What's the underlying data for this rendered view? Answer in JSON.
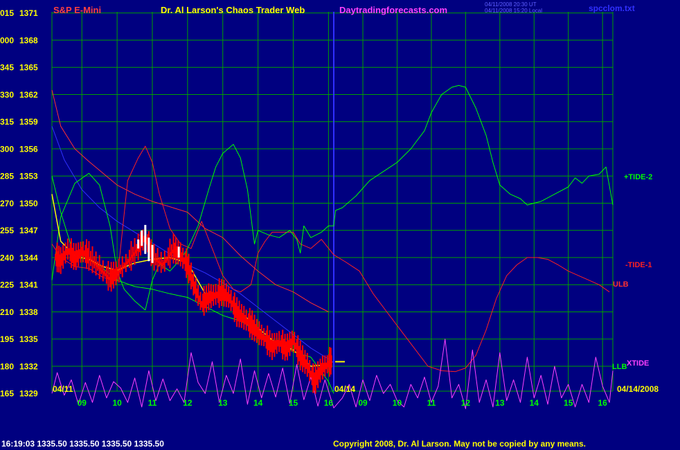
{
  "header": {
    "instrument": "S&P E-Mini",
    "title": "Dr. Al Larson's Chaos Trader Web",
    "site": "Daytradingforecasts.com",
    "stamp_line1": "04/11/2008 20:30 UT",
    "stamp_line2": "04/11/2008 15:20 Local",
    "file": "spcclom.txt"
  },
  "footer": {
    "quote": "16:19:03  1335.50  1335.50  1335.50  1335.50",
    "copyright": "Copyright 2008, Dr. Al Larson. May not be copied by any means."
  },
  "colors": {
    "background": "#000080",
    "grid": "#00A000",
    "divider": "#3030FF",
    "price": "#FF0000",
    "price_highlight": "#FFFFFF",
    "tide_2": "#00FF00",
    "tide_1": "#FF2020",
    "xtide": "#FF40FF",
    "ulb": "#FF3030",
    "llb": "#00FF00",
    "average": "#FFFF00"
  },
  "chart_data": {
    "type": "line",
    "y_left_labels": [
      "015",
      "000",
      "345",
      "330",
      "315",
      "300",
      "285",
      "270",
      "255",
      "240",
      "225",
      "210",
      "195",
      "180",
      "165"
    ],
    "y_right_labels": [
      "1371",
      "1368",
      "1365",
      "1362",
      "1359",
      "1356",
      "1353",
      "1350",
      "1347",
      "1344",
      "1341",
      "1338",
      "1335",
      "1332",
      "1329"
    ],
    "ylim": [
      1329,
      1371
    ],
    "x_tick_labels": [
      "09",
      "10",
      "11",
      "12",
      "13",
      "14",
      "15",
      "16",
      "09",
      "10",
      "11",
      "12",
      "13",
      "14",
      "15",
      "16"
    ],
    "date_labels": [
      "04/11",
      "04/14",
      "04/14/2008"
    ],
    "x_units": "hours (Apr 11 session 08:15-16:15, Apr 14 forecast 08:15-16:15)",
    "grid": true,
    "series": [
      {
        "key": "price",
        "x": [
          8.25,
          8.4,
          8.6,
          8.8,
          9.0,
          9.2,
          9.5,
          9.8,
          10.0,
          10.3,
          10.6,
          10.8,
          11.0,
          11.3,
          11.6,
          11.8,
          12.0,
          12.2,
          12.4,
          12.6,
          12.8,
          13.0,
          13.2,
          13.4,
          13.6,
          13.8,
          14.0,
          14.2,
          14.4,
          14.6,
          14.8,
          15.0,
          15.2,
          15.4,
          15.6,
          15.8,
          16.0,
          16.1
        ],
        "y": [
          1347.0,
          1346.5,
          1347.8,
          1346.8,
          1347.6,
          1347.0,
          1345.8,
          1344.6,
          1345.2,
          1346.5,
          1348.0,
          1349.2,
          1347.0,
          1346.2,
          1347.8,
          1347.2,
          1346.0,
          1343.6,
          1341.8,
          1342.5,
          1342.8,
          1343.0,
          1342.4,
          1340.8,
          1340.2,
          1339.5,
          1338.6,
          1338.0,
          1337.0,
          1337.6,
          1336.8,
          1337.8,
          1336.0,
          1335.0,
          1333.2,
          1334.6,
          1335.2,
          1335.5
        ]
      },
      {
        "key": "tide_2",
        "x": [
          8.15,
          8.4,
          8.8,
          9.2,
          9.5,
          9.8,
          10.0,
          10.2,
          10.5,
          10.8,
          11.0,
          11.2,
          11.5,
          11.8,
          12.0,
          12.3,
          12.6,
          12.8,
          13.0,
          13.3,
          13.5,
          13.7,
          13.9,
          14.0,
          14.3,
          14.6,
          14.9,
          15.1,
          15.2,
          15.3,
          15.5,
          15.8,
          16.0,
          16.15,
          16.2,
          16.4,
          16.8,
          17.2,
          17.6,
          18.0,
          18.4,
          18.8,
          19.0,
          19.3,
          19.6,
          19.8,
          20.0,
          20.3,
          20.6,
          20.8,
          21.0,
          21.3,
          21.6,
          21.8,
          22.2,
          22.6,
          23.0,
          23.2,
          23.4,
          23.6,
          23.9,
          24.1,
          24.3
        ],
        "y": [
          1344.5,
          1351.5,
          1355.2,
          1356.3,
          1355.0,
          1350.5,
          1345.5,
          1343.5,
          1342.2,
          1341.2,
          1344.5,
          1346.3,
          1345.5,
          1346.8,
          1348.0,
          1350.5,
          1354.5,
          1357.0,
          1358.5,
          1359.5,
          1358.0,
          1354.5,
          1348.5,
          1350.0,
          1349.5,
          1349.2,
          1350.0,
          1349.0,
          1347.5,
          1350.5,
          1349.2,
          1349.8,
          1350.5,
          1350.5,
          1352.2,
          1352.5,
          1353.8,
          1355.5,
          1356.5,
          1357.5,
          1359.0,
          1361.0,
          1363.0,
          1365.0,
          1365.8,
          1366.0,
          1365.8,
          1363.5,
          1360.5,
          1357.5,
          1355.0,
          1354.0,
          1353.5,
          1352.8,
          1353.2,
          1354.0,
          1354.8,
          1355.8,
          1355.2,
          1356.0,
          1356.2,
          1357.0,
          1352.8
        ]
      },
      {
        "key": "tide_1",
        "x": [
          8.15,
          8.4,
          8.8,
          9.2,
          9.6,
          10.0,
          10.3,
          10.6,
          10.8,
          11.0,
          11.2,
          11.5,
          11.8,
          12.1,
          12.4,
          12.7,
          13.0,
          13.3,
          13.5,
          13.8,
          14.0,
          14.2,
          14.4,
          14.8,
          15.0,
          15.2,
          15.5,
          15.8,
          16.15,
          16.5,
          16.9,
          17.3,
          17.7,
          18.1,
          18.5,
          18.9,
          19.3,
          19.7,
          20.0,
          20.3,
          20.6,
          20.9,
          21.2,
          21.5,
          21.8,
          22.1,
          22.4,
          22.7,
          23.0,
          23.3,
          23.6,
          23.9,
          24.2
        ],
        "y": [
          1348.5,
          1347.0,
          1346.0,
          1345.8,
          1344.8,
          1344.4,
          1355.5,
          1358.0,
          1359.3,
          1357.5,
          1354.0,
          1350.2,
          1348.5,
          1348.0,
          1351.0,
          1348.0,
          1345.0,
          1343.5,
          1343.2,
          1344.0,
          1347.5,
          1348.8,
          1349.8,
          1349.8,
          1349.8,
          1348.5,
          1348.0,
          1349.0,
          1347.3,
          1346.5,
          1345.5,
          1343.0,
          1341.0,
          1339.0,
          1337.0,
          1335.0,
          1334.5,
          1334.4,
          1334.8,
          1336.2,
          1339.0,
          1342.5,
          1345.0,
          1346.2,
          1347.0,
          1347.0,
          1346.8,
          1346.2,
          1345.5,
          1345.0,
          1344.5,
          1344.0,
          1343.2
        ]
      },
      {
        "key": "xtide",
        "x": [
          8.15,
          8.3,
          8.5,
          8.7,
          8.9,
          9.1,
          9.3,
          9.5,
          9.7,
          9.9,
          10.1,
          10.3,
          10.5,
          10.7,
          10.9,
          11.1,
          11.3,
          11.5,
          11.7,
          11.9,
          12.1,
          12.3,
          12.5,
          12.7,
          12.9,
          13.1,
          13.3,
          13.5,
          13.7,
          13.9,
          14.1,
          14.3,
          14.5,
          14.7,
          14.9,
          15.1,
          15.3,
          15.5,
          15.7,
          15.9,
          16.15,
          16.4,
          16.6,
          16.8,
          17.0,
          17.2,
          17.4,
          17.6,
          17.8,
          18.0,
          18.2,
          18.4,
          18.6,
          18.8,
          19.0,
          19.2,
          19.4,
          19.6,
          19.8,
          20.0,
          20.2,
          20.4,
          20.6,
          20.8,
          21.0,
          21.2,
          21.4,
          21.6,
          21.8,
          22.0,
          22.2,
          22.4,
          22.6,
          22.8,
          23.0,
          23.2,
          23.4,
          23.6,
          23.8,
          24.0,
          24.2,
          24.3
        ],
        "y": [
          1332.0,
          1334.3,
          1331.8,
          1333.5,
          1330.8,
          1333.2,
          1331.0,
          1334.0,
          1331.5,
          1333.3,
          1332.6,
          1331.0,
          1333.7,
          1330.5,
          1334.5,
          1331.2,
          1333.6,
          1331.2,
          1332.5,
          1331.0,
          1336.5,
          1333.2,
          1332.0,
          1335.5,
          1331.0,
          1334.0,
          1332.0,
          1335.8,
          1330.8,
          1334.5,
          1331.5,
          1334.2,
          1331.6,
          1334.8,
          1330.9,
          1335.2,
          1331.3,
          1333.8,
          1330.6,
          1333.5,
          1330.4,
          1331.5,
          1333.0,
          1330.5,
          1333.5,
          1331.2,
          1334.0,
          1332.0,
          1333.0,
          1331.2,
          1330.5,
          1333.0,
          1331.5,
          1333.8,
          1331.0,
          1332.8,
          1338.0,
          1331.5,
          1333.0,
          1330.3,
          1336.8,
          1331.0,
          1333.5,
          1330.5,
          1336.5,
          1331.2,
          1333.5,
          1331.0,
          1336.0,
          1331.5,
          1334.0,
          1330.8,
          1335.0,
          1331.5,
          1333.0,
          1330.5,
          1333.0,
          1331.0,
          1336.0,
          1332.8,
          1331.0,
          1334.5
        ]
      },
      {
        "key": "ulb",
        "x": [
          8.15,
          8.4,
          8.8,
          9.2,
          9.6,
          10.0,
          10.5,
          11.0,
          11.5,
          12.0,
          12.5,
          13.0,
          13.5,
          14.0,
          14.5,
          15.0,
          15.5,
          16.0
        ],
        "y": [
          1365.5,
          1361.5,
          1359.0,
          1357.6,
          1356.3,
          1355.0,
          1354.0,
          1353.2,
          1352.6,
          1352.0,
          1350.2,
          1349.2,
          1347.2,
          1345.5,
          1344.0,
          1343.2,
          1342.0,
          1341.0
        ]
      },
      {
        "key": "llb",
        "x": [
          8.15,
          8.4,
          8.8,
          9.2,
          9.6,
          10.0,
          10.5,
          11.0,
          11.5,
          12.0,
          12.5,
          13.0,
          13.5,
          14.0,
          14.5,
          15.0,
          15.5,
          16.0,
          16.15
        ],
        "y": [
          1356.0,
          1352.0,
          1347.0,
          1346.8,
          1345.8,
          1344.5,
          1343.8,
          1343.5,
          1343.0,
          1342.6,
          1341.6,
          1340.6,
          1340.0,
          1338.8,
          1337.6,
          1336.6,
          1336.0,
          1333.3,
          1332.0
        ]
      },
      {
        "key": "blue_curve",
        "x": [
          8.15,
          8.5,
          9.0,
          9.5,
          10.0,
          10.5,
          11.0,
          11.5,
          12.0,
          12.5,
          13.0,
          13.5,
          14.0,
          14.5,
          15.0,
          15.5,
          16.0,
          16.15
        ],
        "y": [
          1361.5,
          1357.8,
          1354.5,
          1352.5,
          1351.0,
          1349.8,
          1348.6,
          1347.4,
          1346.2,
          1345.3,
          1344.2,
          1343.0,
          1341.5,
          1340.0,
          1338.5,
          1337.0,
          1335.8,
          1335.4
        ]
      },
      {
        "key": "average",
        "x": [
          8.15,
          8.4,
          8.8,
          9.2,
          9.6,
          10.0,
          10.5,
          11.0,
          11.5,
          12.0,
          12.5,
          13.0,
          13.5,
          14.0,
          14.5,
          15.0,
          15.5,
          16.0
        ],
        "y": [
          1354.0,
          1348.8,
          1347.2,
          1346.8,
          1346.0,
          1345.6,
          1346.4,
          1346.8,
          1347.0,
          1346.4,
          1343.0,
          1342.8,
          1341.0,
          1339.2,
          1337.6,
          1336.8,
          1335.0,
          1335.2
        ]
      }
    ],
    "labels": [
      {
        "text": "+TIDE-2",
        "color_key": "tide_2"
      },
      {
        "text": "-TIDE-1",
        "color_key": "tide_1"
      },
      {
        "text": "ULB",
        "color_key": "ulb"
      },
      {
        "text": "LLB",
        "color_key": "llb"
      },
      {
        "text": "XTIDE",
        "color_key": "xtide"
      }
    ]
  }
}
